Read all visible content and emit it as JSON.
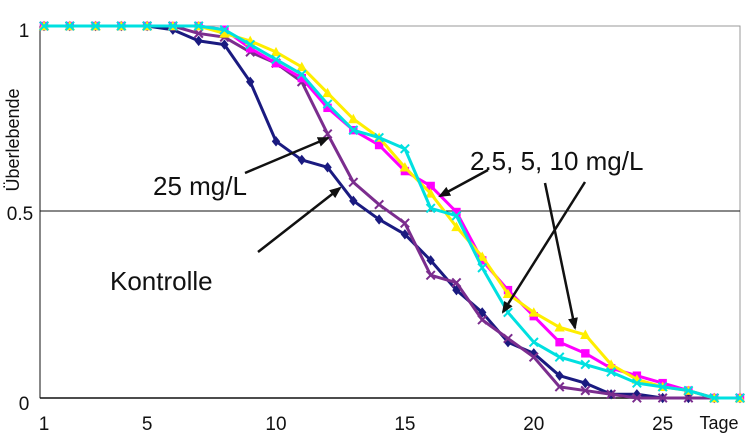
{
  "chart_data": {
    "type": "line",
    "xlabel": "Tage",
    "ylabel": "Überlebende",
    "xlim": [
      1,
      28
    ],
    "ylim": [
      0,
      1
    ],
    "x_ticks": [
      1,
      5,
      10,
      15,
      20,
      25
    ],
    "y_ticks": [
      0,
      0.5,
      1
    ],
    "y_tick_labels": [
      "0",
      "0.5",
      "1"
    ],
    "grid": "horizontal line at 0.5",
    "x": [
      1,
      2,
      3,
      4,
      5,
      6,
      7,
      8,
      9,
      10,
      11,
      12,
      13,
      14,
      15,
      16,
      17,
      18,
      19,
      20,
      21,
      22,
      23,
      24,
      25,
      26,
      27,
      28
    ],
    "series": [
      {
        "color": "#1a1a80",
        "marker": "diamond",
        "values": [
          1,
          1,
          1,
          1,
          1,
          0.99,
          0.96,
          0.95,
          0.85,
          0.69,
          0.64,
          0.62,
          0.53,
          0.48,
          0.44,
          0.37,
          0.29,
          0.23,
          0.15,
          0.12,
          0.06,
          0.04,
          0.01,
          0.01,
          0,
          0,
          0,
          0
        ]
      },
      {
        "color": "#7b2d8e",
        "marker": "x",
        "values": [
          1,
          1,
          1,
          1,
          1,
          1,
          0.98,
          0.97,
          0.93,
          0.9,
          0.85,
          0.71,
          0.58,
          0.52,
          0.47,
          0.33,
          0.31,
          0.21,
          0.16,
          0.11,
          0.03,
          0.02,
          0.01,
          0,
          0,
          0,
          0,
          0
        ]
      },
      {
        "color": "#ff00ff",
        "marker": "square",
        "values": [
          1,
          1,
          1,
          1,
          1,
          1,
          1,
          0.99,
          0.94,
          0.9,
          0.86,
          0.78,
          0.72,
          0.68,
          0.61,
          0.57,
          0.5,
          0.37,
          0.29,
          0.22,
          0.15,
          0.12,
          0.08,
          0.06,
          0.04,
          0.02,
          0,
          0
        ]
      },
      {
        "color": "#ffee00",
        "marker": "triangle",
        "values": [
          1,
          1,
          1,
          1,
          1,
          1,
          1,
          0.98,
          0.96,
          0.93,
          0.89,
          0.82,
          0.75,
          0.7,
          0.62,
          0.55,
          0.46,
          0.38,
          0.28,
          0.23,
          0.19,
          0.17,
          0.09,
          0.05,
          0.03,
          0.02,
          0,
          0
        ]
      },
      {
        "color": "#00e0e0",
        "marker": "x",
        "values": [
          1,
          1,
          1,
          1,
          1,
          1,
          1,
          0.99,
          0.95,
          0.91,
          0.87,
          0.79,
          0.72,
          0.7,
          0.67,
          0.51,
          0.49,
          0.35,
          0.23,
          0.15,
          0.11,
          0.09,
          0.07,
          0.04,
          0.03,
          0.02,
          0,
          0
        ]
      }
    ],
    "annotations": {
      "dose_low": "25 mg/L",
      "dose_high": "2.5, 5, 10 mg/L",
      "control": "Kontrolle"
    }
  }
}
